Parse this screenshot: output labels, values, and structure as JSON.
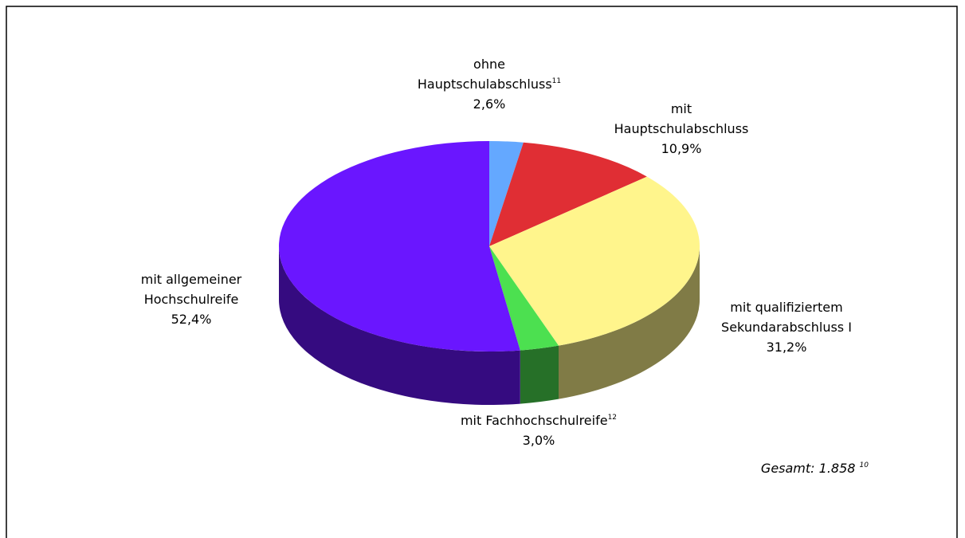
{
  "chart_data": {
    "type": "pie3d",
    "categories": [
      "ohne Hauptschulabschluss",
      "mit Hauptschulabschluss",
      "mit qualifiziertem Sekundarabschluss I",
      "mit Fachhochschulreife",
      "mit allgemeiner Hochschulreife"
    ],
    "category_footnotes": {
      "0": "11",
      "3": "12"
    },
    "values": [
      2.6,
      10.9,
      31.2,
      3.0,
      52.4
    ],
    "value_labels": [
      "2,6%",
      "10,9%",
      "31,2%",
      "3,0%",
      "52,4%"
    ],
    "colors": [
      "#64a8ff",
      "#e02e34",
      "#fff58c",
      "#4ce050",
      "#6a16ff"
    ],
    "annotation": {
      "text": "Gesamt: 1.858",
      "footnote": "10"
    }
  }
}
